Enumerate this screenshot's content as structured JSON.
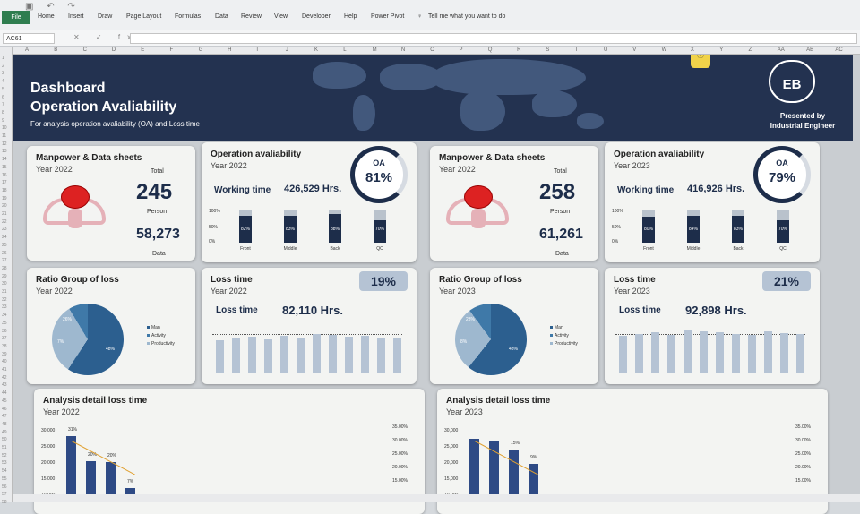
{
  "ribbon": {
    "file": "File",
    "tabs": [
      "Home",
      "Insert",
      "Draw",
      "Page Layout",
      "Formulas",
      "Data",
      "Review",
      "View",
      "Developer",
      "Help",
      "Power Pivot"
    ],
    "tell_me": "Tell me what you want to do"
  },
  "formula_bar": {
    "name_box": "AC61",
    "fx": "fx"
  },
  "columns": [
    "A",
    "B",
    "C",
    "D",
    "E",
    "F",
    "G",
    "H",
    "I",
    "J",
    "K",
    "L",
    "M",
    "N",
    "O",
    "P",
    "Q",
    "R",
    "S",
    "T",
    "U",
    "V",
    "W",
    "X",
    "Y",
    "Z",
    "AA",
    "AB",
    "AC"
  ],
  "banner": {
    "title1": "Dashboard",
    "title2": "Operation Avaliability",
    "subtitle": "For analysis operation avaliability (OA) and Loss time",
    "logo": "EB",
    "presented1": "Presented by",
    "presented2": "Industrial Engineer"
  },
  "panels": [
    {
      "manpower": {
        "title": "Manpower & Data sheets",
        "year": "Year 2022",
        "total_label": "Total",
        "total": "245",
        "person": "Person",
        "data_value": "58,273",
        "data_label": "Data"
      },
      "oa": {
        "title": "Operation avaliability",
        "year": "Year 2022",
        "wt_label": "Working time",
        "wt_value": "426,529 Hrs.",
        "oa_label": "OA",
        "oa_value": "81%",
        "y_ticks": [
          "100%",
          "50%",
          "0%"
        ],
        "categories": [
          "Front",
          "Middle",
          "Back",
          "QC"
        ],
        "values": [
          82,
          83,
          88,
          70
        ],
        "value_labels": [
          "82%",
          "83%",
          "88%",
          "70%"
        ]
      },
      "ratio": {
        "title": "Ratio Group of loss",
        "year": "Year 2022",
        "slices": [
          {
            "name": "Man",
            "value": 48
          },
          {
            "name": "Activity",
            "value": 26
          },
          {
            "name": "Productivity",
            "value": 7
          }
        ],
        "labels": [
          "26%",
          "7%",
          "48%"
        ],
        "legend": [
          "Man",
          "Activity",
          "Productivity"
        ]
      },
      "loss": {
        "title": "Loss time",
        "year": "Year 2022",
        "badge": "19%",
        "lt_label": "Loss time",
        "lt_value": "82,110 Hrs.",
        "bars": [
          0.62,
          0.65,
          0.68,
          0.64,
          0.7,
          0.66,
          0.74,
          0.72,
          0.68,
          0.7,
          0.67,
          0.66
        ]
      },
      "detail": {
        "title": "Analysis detail loss time",
        "year": "Year 2022",
        "y_left": [
          "30,000",
          "25,000",
          "20,000",
          "15,000",
          "10,000"
        ],
        "y_right": [
          "35.00%",
          "30.00%",
          "25.00%",
          "20.00%",
          "15.00%"
        ],
        "bars": [
          27000,
          15500,
          15000,
          3000
        ],
        "pct_labels": [
          "31%",
          "20%",
          "20%",
          "7%"
        ]
      }
    },
    {
      "manpower": {
        "title": "Manpower & Data sheets",
        "year": "Year 2022",
        "total_label": "Total",
        "total": "258",
        "person": "Person",
        "data_value": "61,261",
        "data_label": "Data"
      },
      "oa": {
        "title": "Operation avaliability",
        "year": "Year 2023",
        "wt_label": "Working time",
        "wt_value": "416,926 Hrs.",
        "oa_label": "OA",
        "oa_value": "79%",
        "y_ticks": [
          "100%",
          "50%",
          "0%"
        ],
        "categories": [
          "Front",
          "Middle",
          "Back",
          "QC"
        ],
        "values": [
          80,
          84,
          83,
          70
        ],
        "value_labels": [
          "80%",
          "84%",
          "83%",
          "70%"
        ]
      },
      "ratio": {
        "title": "Ratio Group of loss",
        "year": "Year 2023",
        "slices": [
          {
            "name": "Man",
            "value": 48
          },
          {
            "name": "Activity",
            "value": 23
          },
          {
            "name": "Productivity",
            "value": 8
          }
        ],
        "labels": [
          "23%",
          "8%",
          "48%"
        ],
        "legend": [
          "Man",
          "Activity",
          "Productivity"
        ]
      },
      "loss": {
        "title": "Loss time",
        "year": "Year 2023",
        "badge": "21%",
        "lt_label": "Loss time",
        "lt_value": "92,898 Hrs.",
        "bars": [
          0.7,
          0.74,
          0.76,
          0.72,
          0.8,
          0.78,
          0.76,
          0.74,
          0.72,
          0.78,
          0.75,
          0.74
        ]
      },
      "detail": {
        "title": "Analysis detail loss time",
        "year": "Year 2023",
        "y_left": [
          "30,000",
          "25,000",
          "20,000",
          "15,000",
          "10,000"
        ],
        "y_right": [
          "35.00%",
          "30.00%",
          "25.00%",
          "20.00%",
          "15.00%"
        ],
        "bars": [
          26000,
          24500,
          21000,
          14000
        ],
        "pct_labels": [
          "",
          "",
          "15%",
          "9%"
        ]
      }
    }
  ],
  "colors": {
    "navy": "#1d2d4a",
    "banner": "#233250",
    "bar_light": "#b9c2cc",
    "pie_dark": "#2c5f8f",
    "pie_mid": "#3f79a8",
    "pie_light": "#9eb8cf"
  }
}
